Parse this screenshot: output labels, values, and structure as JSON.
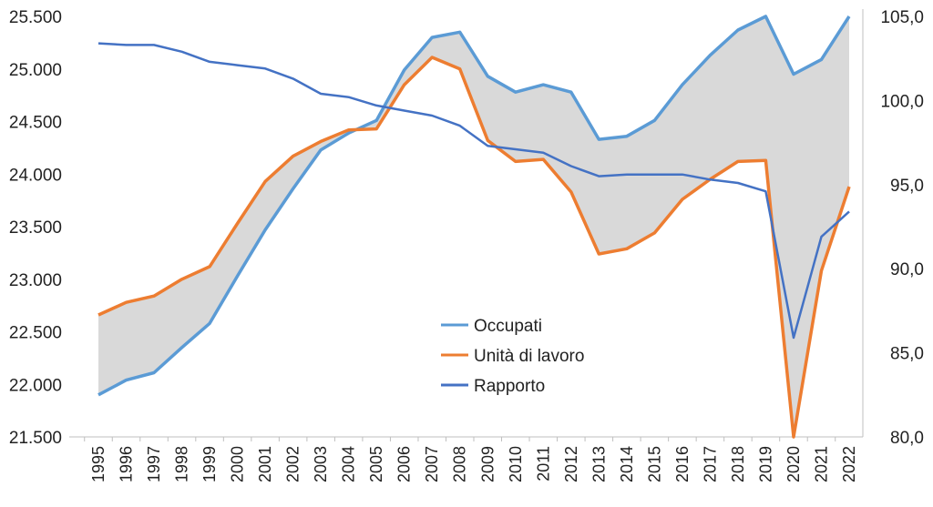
{
  "chart_data": {
    "type": "line",
    "x": [
      "1995",
      "1996",
      "1997",
      "1998",
      "1999",
      "2000",
      "2001",
      "2002",
      "2003",
      "2004",
      "2005",
      "2006",
      "2007",
      "2008",
      "2009",
      "2010",
      "2011",
      "2012",
      "2013",
      "2014",
      "2015",
      "2016",
      "2017",
      "2018",
      "2019",
      "2020",
      "2021",
      "2022"
    ],
    "ylim_left": [
      21500,
      25500
    ],
    "yticks_left": [
      "21.500",
      "22.000",
      "22.500",
      "23.000",
      "23.500",
      "24.000",
      "24.500",
      "25.000",
      "25.500"
    ],
    "ylim_right": [
      80,
      105
    ],
    "yticks_right": [
      "80,0",
      "85,0",
      "90,0",
      "95,0",
      "100,0",
      "105,0"
    ],
    "series": [
      {
        "name": "Occupati",
        "axis": "left",
        "color": "#5B9BD5",
        "values": [
          21900,
          22040,
          22110,
          22350,
          22580,
          23030,
          23470,
          23860,
          24230,
          24390,
          24510,
          24990,
          25300,
          25350,
          24930,
          24780,
          24850,
          24780,
          24330,
          24360,
          24510,
          24850,
          25130,
          25370,
          25500,
          24950,
          25090,
          25500
        ]
      },
      {
        "name": "Unità di lavoro",
        "axis": "left",
        "color": "#ED7D31",
        "values": [
          22660,
          22780,
          22840,
          23000,
          23120,
          23530,
          23930,
          24170,
          24310,
          24420,
          24430,
          24850,
          25110,
          25000,
          24320,
          24120,
          24140,
          23830,
          23240,
          23290,
          23440,
          23760,
          23950,
          24120,
          24130,
          21500,
          23080,
          23880
        ]
      },
      {
        "name": "Rapporto",
        "axis": "right",
        "color": "#4472C4",
        "values": [
          103.4,
          103.3,
          103.3,
          102.9,
          102.3,
          102.1,
          101.9,
          101.3,
          100.4,
          100.2,
          99.7,
          99.4,
          99.1,
          98.5,
          97.3,
          97.1,
          96.9,
          96.1,
          95.5,
          95.6,
          95.6,
          95.6,
          95.3,
          95.1,
          94.6,
          85.9,
          91.9,
          93.4
        ]
      }
    ],
    "legend": {
      "placement": "center",
      "entries": [
        "Occupati",
        "Unità di lavoro",
        "Rapporto"
      ]
    },
    "area_fill_color": "#D9D9D9",
    "grid": false
  }
}
